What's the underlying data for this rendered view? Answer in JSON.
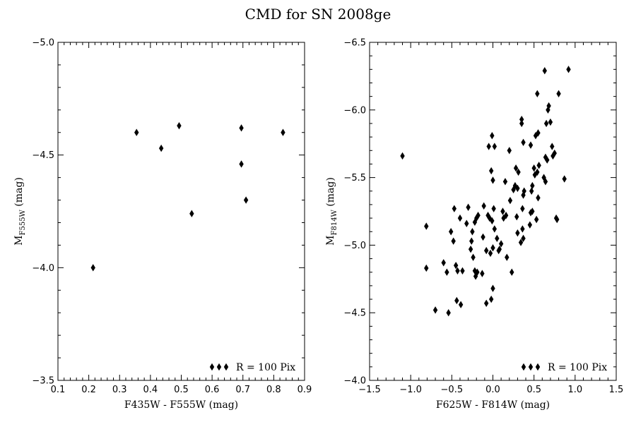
{
  "title": "CMD for SN 2008ge",
  "chart_data": [
    {
      "type": "scatter",
      "xlabel": "F435W - F555W (mag)",
      "ylabel_main": "M",
      "ylabel_sub": "F555W",
      "ylabel_unit": " (mag)",
      "xlim": [
        0.1,
        0.9
      ],
      "ylim": [
        -3.5,
        -5.0
      ],
      "xticks": [
        "0.1",
        "0.2",
        "0.3",
        "0.4",
        "0.5",
        "0.6",
        "0.7",
        "0.8",
        "0.9"
      ],
      "yticks": [
        "−5.0",
        "−4.5",
        "−4.0",
        "−3.5"
      ],
      "ytick_values": [
        -5.0,
        -4.5,
        -4.0,
        -3.5
      ],
      "legend": "R = 100 Pix",
      "legend_position": "lower-right",
      "marker": "thin-diamond",
      "series": [
        {
          "x": [
            0.214,
            0.355,
            0.435,
            0.493,
            0.534,
            0.695,
            0.695,
            0.71,
            0.83
          ],
          "y": [
            -4.0,
            -4.6,
            -4.53,
            -4.63,
            -4.24,
            -4.46,
            -4.62,
            -4.3,
            -4.6
          ]
        }
      ]
    },
    {
      "type": "scatter",
      "xlabel": "F625W - F814W (mag)",
      "ylabel_main": "M",
      "ylabel_sub": "F814W",
      "ylabel_unit": " (mag)",
      "xlim": [
        -1.5,
        1.5
      ],
      "ylim": [
        -4.0,
        -6.5
      ],
      "xticks": [
        "−1.5",
        "−1.0",
        "−0.5",
        "0.0",
        "0.5",
        "1.0",
        "1.5"
      ],
      "yticks": [
        "−6.5",
        "−6.0",
        "−5.5",
        "−5.0",
        "−4.5",
        "−4.0"
      ],
      "ytick_values": [
        -6.5,
        -6.0,
        -5.5,
        -5.0,
        -4.5,
        -4.0
      ],
      "legend": "R = 100 Pix",
      "legend_position": "lower-right",
      "marker": "thin-diamond",
      "series": [
        {
          "x": [
            -1.1,
            -0.81,
            -0.81,
            -0.7,
            -0.6,
            -0.56,
            -0.54,
            -0.51,
            -0.48,
            -0.47,
            -0.45,
            -0.44,
            -0.43,
            -0.4,
            -0.39,
            -0.37,
            -0.32,
            -0.3,
            -0.27,
            -0.26,
            -0.25,
            -0.24,
            -0.22,
            -0.22,
            -0.21,
            -0.2,
            -0.19,
            -0.18,
            -0.13,
            -0.12,
            -0.11,
            -0.08,
            -0.08,
            -0.06,
            -0.05,
            -0.04,
            -0.03,
            -0.02,
            -0.02,
            -0.01,
            -0.01,
            0.0,
            0.0,
            0.0,
            0.01,
            0.02,
            0.02,
            0.05,
            0.07,
            0.08,
            0.1,
            0.12,
            0.13,
            0.15,
            0.16,
            0.17,
            0.2,
            0.21,
            0.23,
            0.25,
            0.27,
            0.28,
            0.29,
            0.3,
            0.3,
            0.31,
            0.34,
            0.35,
            0.35,
            0.36,
            0.36,
            0.37,
            0.37,
            0.37,
            0.38,
            0.45,
            0.46,
            0.46,
            0.47,
            0.48,
            0.48,
            0.5,
            0.51,
            0.52,
            0.53,
            0.54,
            0.54,
            0.55,
            0.55,
            0.56,
            0.62,
            0.63,
            0.64,
            0.64,
            0.65,
            0.66,
            0.67,
            0.68,
            0.7,
            0.72,
            0.73,
            0.75,
            0.77,
            0.78,
            0.8,
            0.87,
            0.92
          ],
          "y": [
            -5.66,
            -5.14,
            -4.83,
            -4.52,
            -4.87,
            -4.8,
            -4.5,
            -5.1,
            -5.03,
            -5.27,
            -4.85,
            -4.59,
            -4.81,
            -5.2,
            -4.56,
            -4.81,
            -5.16,
            -5.28,
            -4.97,
            -5.03,
            -5.1,
            -4.91,
            -5.17,
            -4.81,
            -4.77,
            -5.2,
            -4.8,
            -5.22,
            -4.79,
            -5.06,
            -5.29,
            -4.57,
            -4.96,
            -5.22,
            -5.73,
            -5.2,
            -4.94,
            -5.55,
            -4.6,
            -5.18,
            -5.81,
            -5.48,
            -4.68,
            -4.98,
            -5.27,
            -5.73,
            -5.12,
            -5.05,
            -4.96,
            -4.97,
            -5.01,
            -5.25,
            -5.2,
            -5.47,
            -5.22,
            -4.91,
            -5.7,
            -5.33,
            -4.8,
            -5.41,
            -5.44,
            -5.57,
            -5.21,
            -5.09,
            -5.42,
            -5.54,
            -5.02,
            -5.9,
            -5.93,
            -5.27,
            -5.12,
            -5.05,
            -5.37,
            -5.76,
            -5.4,
            -5.15,
            -5.74,
            -5.24,
            -5.4,
            -5.44,
            -5.25,
            -5.57,
            -5.52,
            -5.81,
            -5.19,
            -5.54,
            -6.12,
            -5.35,
            -5.83,
            -5.59,
            -5.5,
            -6.29,
            -5.65,
            -5.47,
            -5.9,
            -5.63,
            -6.0,
            -6.03,
            -5.91,
            -5.73,
            -5.66,
            -5.68,
            -5.2,
            -5.19,
            -6.12,
            -5.49,
            -6.3
          ]
        }
      ]
    }
  ]
}
